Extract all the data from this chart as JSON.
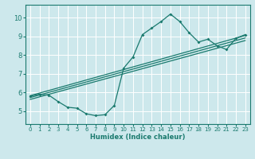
{
  "xlabel": "Humidex (Indice chaleur)",
  "xlim": [
    -0.5,
    23.5
  ],
  "ylim": [
    4.3,
    10.7
  ],
  "yticks": [
    5,
    6,
    7,
    8,
    9,
    10
  ],
  "xticks": [
    0,
    1,
    2,
    3,
    4,
    5,
    6,
    7,
    8,
    9,
    10,
    11,
    12,
    13,
    14,
    15,
    16,
    17,
    18,
    19,
    20,
    21,
    22,
    23
  ],
  "bg_color": "#cde8ec",
  "grid_color": "#ffffff",
  "line_color": "#1a7a6e",
  "line1_x": [
    0,
    1,
    2,
    3,
    4,
    5,
    6,
    7,
    8,
    9,
    10,
    11,
    12,
    13,
    14,
    15,
    16,
    17,
    18,
    19,
    20,
    21,
    22,
    23
  ],
  "line1_y": [
    5.8,
    5.9,
    5.85,
    5.5,
    5.2,
    5.15,
    4.85,
    4.75,
    4.8,
    5.3,
    7.3,
    7.9,
    9.1,
    9.45,
    9.8,
    10.2,
    9.8,
    9.2,
    8.7,
    8.85,
    8.5,
    8.3,
    8.9,
    9.1
  ],
  "straight_lines": [
    {
      "x": [
        0,
        23
      ],
      "y0": 5.82,
      "y1": 9.05
    },
    {
      "x": [
        0,
        23
      ],
      "y0": 5.72,
      "y1": 8.92
    },
    {
      "x": [
        0,
        23
      ],
      "y0": 5.62,
      "y1": 8.78
    }
  ]
}
